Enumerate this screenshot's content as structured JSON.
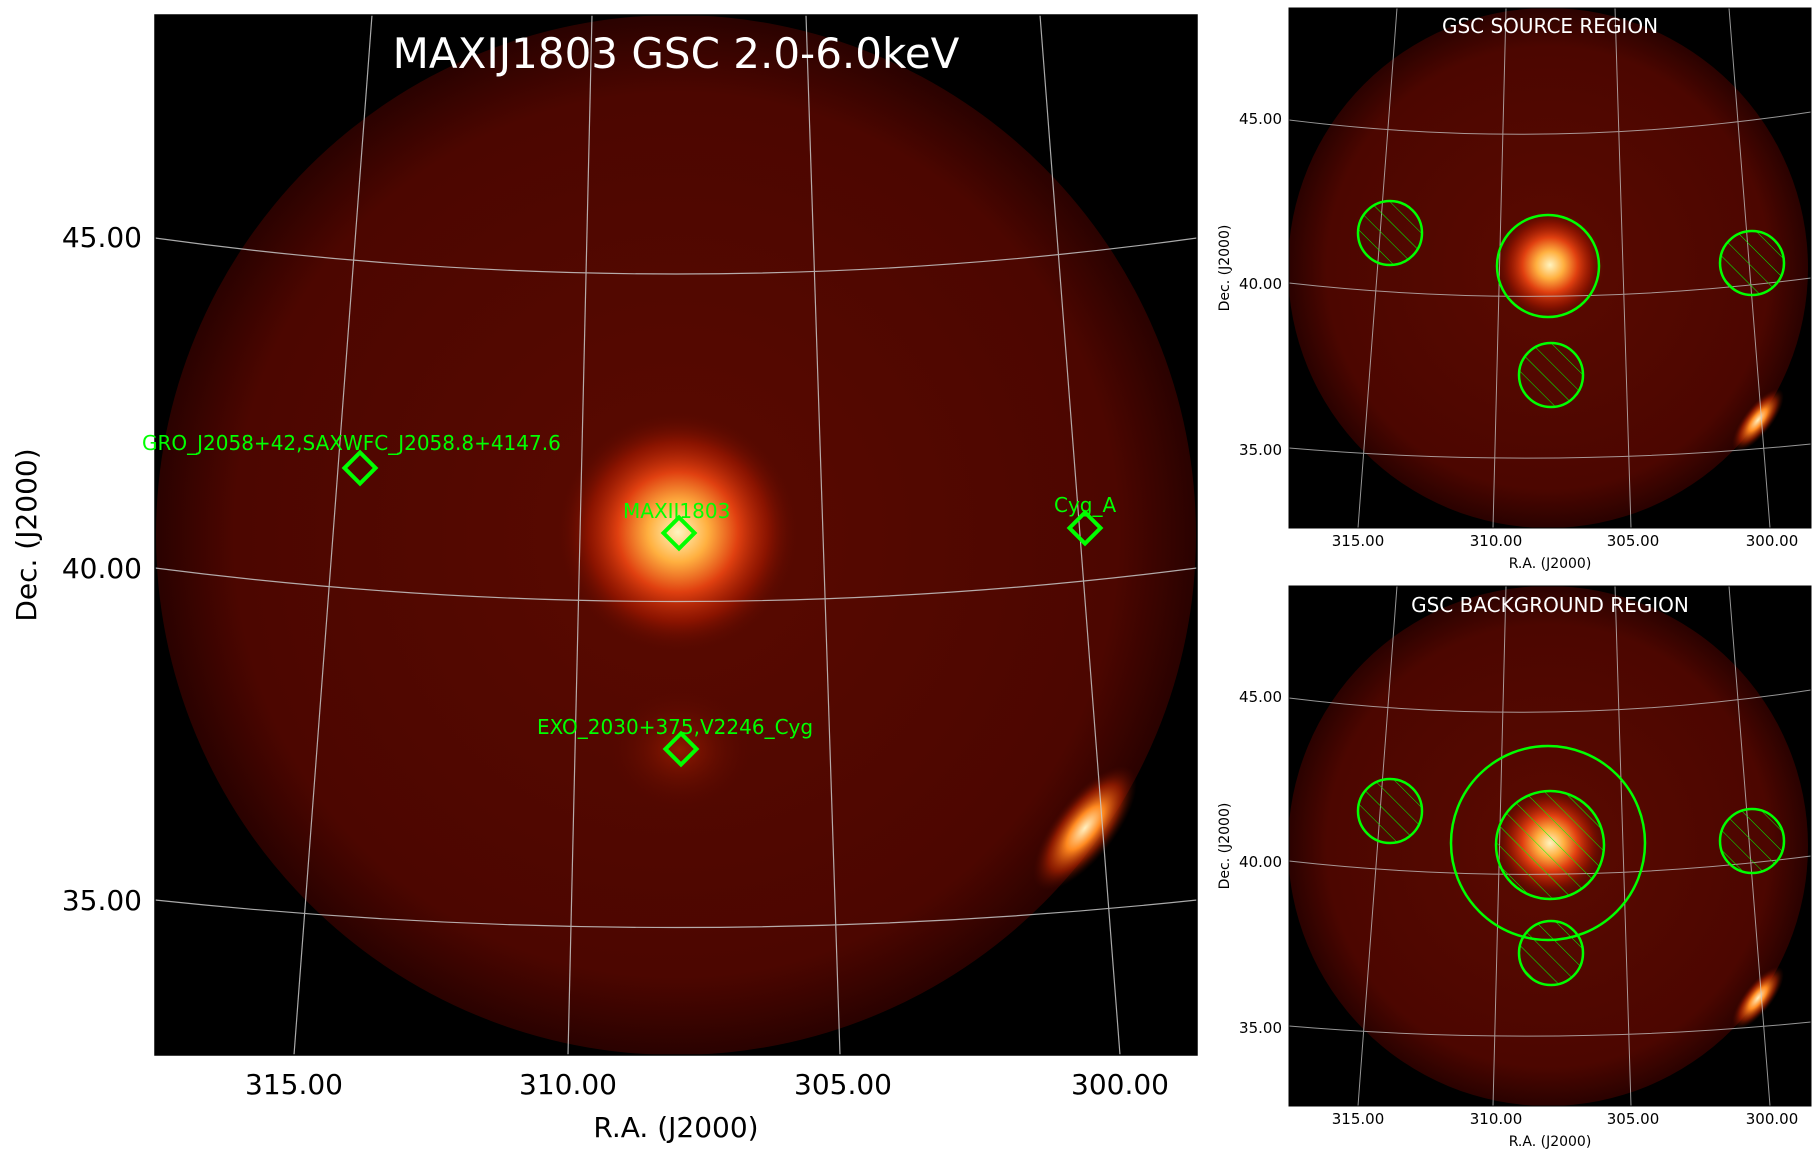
{
  "main": {
    "title": "MAXIJ1803 GSC 2.0-6.0keV",
    "xlabel": "R.A. (J2000)",
    "ylabel": "Dec. (J2000)",
    "xticks": [
      "315.00",
      "310.00",
      "305.00",
      "300.00"
    ],
    "yticks": [
      "45.00",
      "40.00",
      "35.00"
    ],
    "sources": [
      {
        "name": "GRO_J2058+42,SAXWFC_J2058.8+4147.6",
        "ra": 313.7,
        "dec": 41.8
      },
      {
        "name": "MAXIJ1803",
        "ra": 307.8,
        "dec": 40.7
      },
      {
        "name": "Cyg_A",
        "ra": 299.9,
        "dec": 40.7
      },
      {
        "name": "EXO_2030+375,V2246_Cyg",
        "ra": 307.8,
        "dec": 37.5
      }
    ]
  },
  "source_panel": {
    "title": "GSC SOURCE REGION",
    "xlabel": "R.A. (J2000)",
    "ylabel": "Dec. (J2000)",
    "xticks": [
      "315.00",
      "310.00",
      "305.00",
      "300.00"
    ],
    "yticks": [
      "45.00",
      "40.00",
      "35.00"
    ]
  },
  "background_panel": {
    "title": "GSC BACKGROUND REGION",
    "xlabel": "R.A. (J2000)",
    "ylabel": "Dec. (J2000)",
    "xticks": [
      "315.00",
      "310.00",
      "305.00",
      "300.00"
    ],
    "yticks": [
      "45.00",
      "40.00",
      "35.00"
    ]
  },
  "colors": {
    "region": "#00ff00",
    "grid": "#c8c8c8",
    "glow": "#fff4c0",
    "field": "#5a0a00"
  }
}
